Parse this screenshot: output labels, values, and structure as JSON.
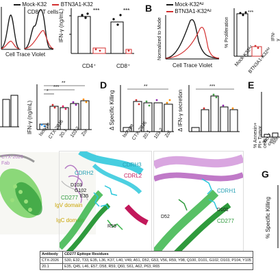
{
  "panel_letters": {
    "b": "B",
    "d": "D",
    "e": "E",
    "g": "G"
  },
  "row1_left": {
    "legend": [
      "Mock-K32",
      "BTN3A1-K32"
    ],
    "subpanel_label": "CD8⁺ T cells",
    "xlabel": "Cell Trace Violet",
    "ylabel": "IFN-γ (ng/mL)",
    "categories": [
      "CD4⁺",
      "CD8⁺"
    ],
    "stars": [
      "***",
      "***"
    ]
  },
  "panel_b": {
    "legend": [
      "Mock-K32ᴬ²",
      "BTN3A1-K32ᴬ²"
    ],
    "ylabel_hist": "Normalized to Mode",
    "xlabel_hist": "Cell Trace Violet",
    "ylabel_bar": "% Proliferation",
    "categories": [
      "Mock-K32ᴬ²",
      "BTN3A1-K32ᴬ²"
    ],
    "stars": "***",
    "right_ylabel": "IFN-γ"
  },
  "row2_left": {
    "ylabel": "IFN-γ (ng/mL)",
    "categories": [
      "Isotype",
      "CTX-2026",
      "20.1",
      "103.2",
      "Zol"
    ],
    "stars": [
      "*",
      "***",
      "**"
    ]
  },
  "panel_d": {
    "ylabel_left": "Δ Specific Killing",
    "ylabel_right": "Δ IFN-γ secretion",
    "categories": [
      "Isotype",
      "CTX-2026",
      "20.1",
      "103.2",
      "Zol"
    ],
    "stars_left": "**",
    "stars_right": "***"
  },
  "panel_e": {
    "ylabel": "% Annexin+ PI+ Tumor cells",
    "categories": [
      "No T cells",
      "Isot"
    ]
  },
  "panel_g": {
    "ylabel": "% Specific Killing"
  },
  "structures": {
    "left": {
      "labels": [
        "CTX-2026",
        "Fab",
        "IgV domain",
        "IgC domain"
      ]
    },
    "middle": {
      "labels": [
        "CDRH2",
        "CDRH3",
        "CDRL2",
        "D103",
        "G102",
        "E35",
        "CD277",
        "R59"
      ]
    },
    "right": {
      "labels": [
        "CDRH1",
        "D52",
        "D101",
        "CD277"
      ]
    }
  },
  "epitope_table": {
    "headers": [
      "Antibody",
      "CD277 Epitope Residues"
    ],
    "rows": [
      {
        "antibody": "CTX-2026",
        "residues": "S30, E32, T33, E35, L36, K37, L40, V49, A51, D52, G53, V56, R59, Y98, Q100, D101, G102, D103, P104, Y105"
      },
      {
        "antibody": "20.1",
        "residues": "E35, Q45, L46, E57, D58, R59, Q60, S61, A62, P63, R65"
      }
    ]
  },
  "colors": {
    "mock": "#1a1a1a",
    "btn": "#d32f2f",
    "green_struct": "#39b54a",
    "cyan_struct": "#26c6da",
    "magenta_struct": "#c2185b",
    "pink_struct": "#d090d8"
  }
}
